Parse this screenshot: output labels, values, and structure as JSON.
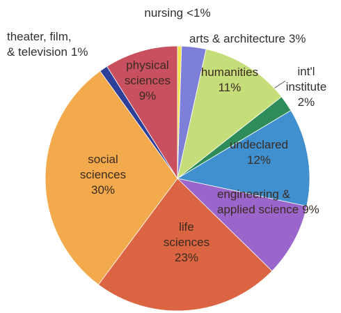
{
  "chart_data": {
    "type": "pie",
    "categories": [
      "nursing",
      "arts & architecture",
      "humanities",
      "int'l\ninstitute",
      "undeclared",
      "engineering &\napplied science",
      "life\nsciences",
      "social\nsciences",
      "theater, film,\n& television",
      "physical\nsciences"
    ],
    "values": [
      0.5,
      3,
      11,
      2,
      12,
      9,
      23,
      30,
      1,
      9
    ],
    "value_labels": [
      "<1%",
      "3%",
      "11%",
      "2%",
      "12%",
      "9%",
      "23%",
      "30%",
      "1%",
      "9%"
    ],
    "colors": [
      "#efe44c",
      "#7d7fd8",
      "#c6de7a",
      "#2e8c5a",
      "#4090d0",
      "#9b66cb",
      "#db6442",
      "#f2aa4c",
      "#2d3f99",
      "#c8505f"
    ]
  }
}
